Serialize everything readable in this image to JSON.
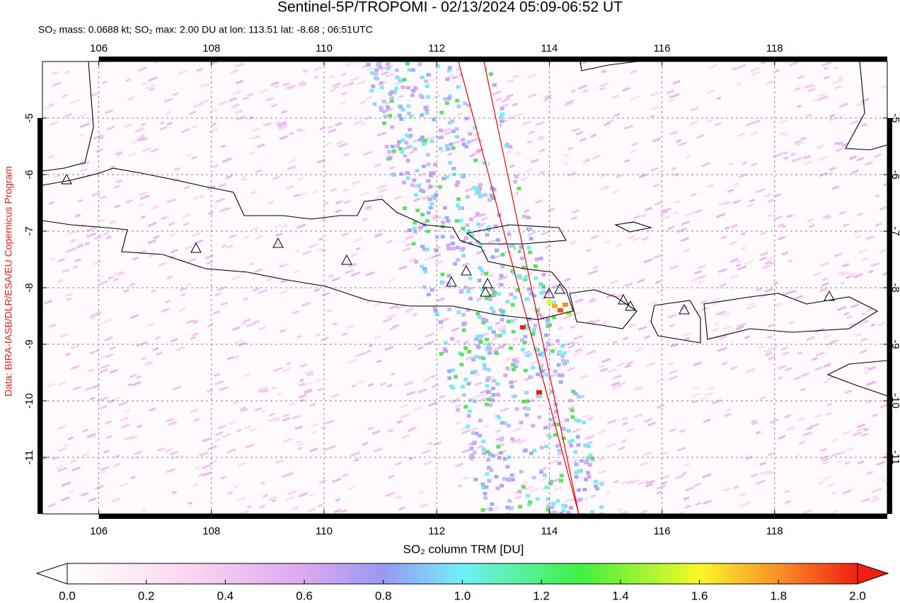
{
  "title": "Sentinel-5P/TROPOMI - 02/13/2024 05:09-06:52 UT",
  "subtitle": "SO₂ mass: 0.0688 kt; SO₂ max: 2.00 DU at lon: 113.51 lat: -8.68 ; 06:51UTC",
  "credit": "Data: BIRA-IASB/DLR/ESA/EU Copernicus Program",
  "map": {
    "xlim": [
      105,
      120
    ],
    "ylim": [
      -12,
      -4
    ],
    "xticks": [
      106,
      108,
      110,
      112,
      114,
      116,
      118
    ],
    "yticks": [
      -5,
      -6,
      -7,
      -8,
      -9,
      -10,
      -11
    ],
    "grid": true
  },
  "colorbar": {
    "label": "SO₂ column TRM [DU]",
    "range": [
      0,
      2
    ],
    "ticks": [
      {
        "value": 0,
        "label": "0.0"
      },
      {
        "value": 0.2,
        "label": "0.2"
      },
      {
        "value": 0.4,
        "label": "0.4"
      },
      {
        "value": 0.6,
        "label": "0.6"
      },
      {
        "value": 0.8,
        "label": "0.8"
      },
      {
        "value": 1,
        "label": "1.0"
      },
      {
        "value": 1.2,
        "label": "1.2"
      },
      {
        "value": 1.4,
        "label": "1.4"
      },
      {
        "value": 1.6,
        "label": "1.6"
      },
      {
        "value": 1.8,
        "label": "1.8"
      },
      {
        "value": 2,
        "label": "2.0"
      }
    ]
  }
}
